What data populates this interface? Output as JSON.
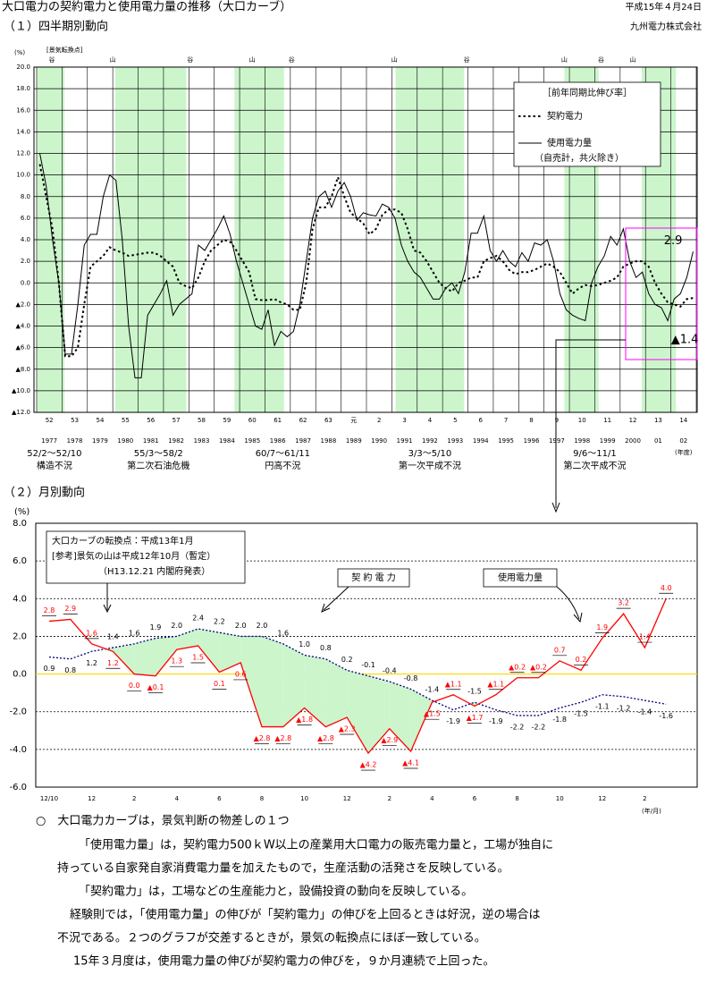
{
  "header": {
    "title": "大口電力の契約電力と使用電力量の推移（大口カーブ）",
    "date": "平成15年４月24日",
    "company": "九州電力株式会社"
  },
  "chart_data": [
    {
      "type": "line",
      "title": "（１）四半期別動向",
      "y_unit": "(%)",
      "turning_points_title": "[景気転換点]",
      "x_unit": "(年度)",
      "categories": [
        "52",
        "53",
        "54",
        "55",
        "56",
        "57",
        "58",
        "59",
        "60",
        "61",
        "62",
        "63",
        "元",
        "2",
        "3",
        "4",
        "5",
        "6",
        "7",
        "8",
        "9",
        "10",
        "11",
        "12",
        "13",
        "14"
      ],
      "years": [
        "1977",
        "1978",
        "1979",
        "1980",
        "1981",
        "1982",
        "1983",
        "1984",
        "1985",
        "1986",
        "1987",
        "1988",
        "1989",
        "1990",
        "1991",
        "1992",
        "1993",
        "1994",
        "1995",
        "1996",
        "1997",
        "1998",
        "1999",
        "2000",
        "01",
        "02"
      ],
      "xlim": [
        1977,
        2003
      ],
      "ylim": [
        -12,
        20
      ],
      "yticks": [
        {
          "value": -12,
          "label": "▲12.0"
        },
        {
          "value": -10,
          "label": "▲10.0"
        },
        {
          "value": -8,
          "label": "▲8.0"
        },
        {
          "value": -6,
          "label": "▲6.0"
        },
        {
          "value": -4,
          "label": "▲4.0"
        },
        {
          "value": -2,
          "label": "▲2.0"
        },
        {
          "value": 0,
          "label": "0.0"
        },
        {
          "value": 2,
          "label": "2.0"
        },
        {
          "value": 4,
          "label": "4.0"
        },
        {
          "value": 6,
          "label": "6.0"
        },
        {
          "value": 8,
          "label": "8.0"
        },
        {
          "value": 10,
          "label": "10.0"
        },
        {
          "value": 12,
          "label": "12.0"
        },
        {
          "value": 14,
          "label": "14.0"
        },
        {
          "value": 16,
          "label": "16.0"
        },
        {
          "value": 18,
          "label": "18.0"
        },
        {
          "value": 20,
          "label": "20.0"
        }
      ],
      "grid": true,
      "series": [
        {
          "name": "契約電力",
          "color": "#000000",
          "style": "dotted",
          "values": [
            [
              11,
              8,
              5,
              0
            ],
            [
              -6.8,
              -6.8,
              -6,
              -2
            ],
            [
              1.5,
              2,
              2.5,
              3.3
            ],
            [
              3,
              2.8,
              2.5,
              2.6
            ],
            [
              2.7,
              2.8,
              2.8,
              2.5
            ],
            [
              2,
              1.5,
              0,
              -0.3
            ],
            [
              -0.5,
              0.5,
              2,
              3
            ],
            [
              3.5,
              4,
              3.8,
              3
            ],
            [
              2,
              1,
              -1.5,
              -1.6
            ],
            [
              -1.6,
              -1.5,
              -1.8,
              -2
            ],
            [
              -2.5,
              -2.5,
              0,
              5
            ],
            [
              7,
              7,
              8,
              9.8
            ],
            [
              8,
              6.5,
              6,
              5.5
            ],
            [
              4.5,
              5,
              6.3,
              6.8
            ],
            [
              6.8,
              6.5,
              5,
              3
            ],
            [
              2.8,
              2,
              1,
              0
            ],
            [
              -0.5,
              -0.8,
              0,
              0.2
            ],
            [
              0.5,
              0.5,
              2,
              2.3
            ],
            [
              2.5,
              2,
              1.2,
              0.8
            ],
            [
              1,
              1,
              1.2,
              1.5
            ],
            [
              1.8,
              1.5,
              1,
              0
            ],
            [
              -1,
              -0.5,
              -0.2,
              -0.3
            ],
            [
              -0.2,
              0,
              0.2,
              0.5
            ],
            [
              1.5,
              1.8,
              2,
              2
            ],
            [
              1.5,
              0,
              -1,
              -1.8
            ],
            [
              -2,
              -2.2,
              -1.5,
              -1.4
            ]
          ]
        },
        {
          "name": "使用電力量",
          "color": "#000000",
          "style": "solid",
          "values": [
            [
              12,
              9,
              4,
              0
            ],
            [
              -6.6,
              -6.6,
              -2,
              3.5
            ],
            [
              4.5,
              4.5,
              8,
              10
            ],
            [
              9.5,
              4,
              -4,
              -8.8
            ],
            [
              -8.8,
              -3,
              -2,
              -1
            ],
            [
              0.2,
              -3,
              -2,
              -1.5
            ],
            [
              -1,
              3.5,
              3,
              4
            ],
            [
              5,
              6.2,
              4.5,
              2
            ],
            [
              0,
              -2,
              -4,
              -4.3
            ],
            [
              -2.5,
              -5.8,
              -4.5,
              -5
            ],
            [
              -4.5,
              -2,
              2,
              6
            ],
            [
              8,
              8.5,
              7,
              8.5
            ],
            [
              9.3,
              8,
              5.8,
              6.5
            ],
            [
              6.3,
              6.2,
              7.3,
              7
            ],
            [
              6,
              3.5,
              2,
              1
            ],
            [
              0.5,
              -0.5,
              -1.5,
              -1.5
            ],
            [
              -0.5,
              0,
              -1,
              1
            ],
            [
              4.6,
              4.6,
              6.2,
              3
            ],
            [
              2,
              3,
              2,
              1.5
            ],
            [
              2.8,
              2,
              3.7,
              3.5
            ],
            [
              4,
              2,
              -1,
              -2.5
            ],
            [
              -3,
              -3.3,
              -3.5,
              0
            ],
            [
              1.5,
              2.5,
              4.3,
              3.5
            ],
            [
              5,
              2,
              0.5,
              1
            ],
            [
              -1,
              -2,
              -2.3,
              -3.5
            ],
            [
              -1.5,
              -1,
              0.5,
              2.9
            ]
          ]
        }
      ],
      "legend_title": "［前年同期比伸び率］",
      "legend_note": "（自売計，共火除き）",
      "shade_color": "#ccf5cc",
      "shaded_periods": [
        [
          1977.0,
          1978.1
        ],
        [
          1980.1,
          1982.9
        ],
        [
          1984.8,
          1986.75
        ],
        [
          1991.15,
          1993.85
        ],
        [
          1997.8,
          1999.15
        ],
        [
          2000.85,
          2002.2
        ]
      ],
      "turning_points": [
        {
          "label": "谷",
          "x": 1977.6
        },
        {
          "label": "山",
          "x": 1980.0
        },
        {
          "label": "谷",
          "x": 1983.05
        },
        {
          "label": "山",
          "x": 1985.5
        },
        {
          "label": "谷",
          "x": 1987.05
        },
        {
          "label": "山",
          "x": 1991.1
        },
        {
          "label": "谷",
          "x": 1993.95
        },
        {
          "label": "山",
          "x": 1997.8
        },
        {
          "label": "谷",
          "x": 1999.25
        },
        {
          "label": "山",
          "x": 2000.5
        }
      ],
      "recessions": [
        {
          "period": "52/2～52/10",
          "name": "構造不況",
          "x": 1977.7
        },
        {
          "period": "55/3～58/2",
          "name": "第二次石油危機",
          "x": 1981.8
        },
        {
          "period": "60/7～61/11",
          "name": "円高不況",
          "x": 1986.7
        },
        {
          "period": "3/3～5/10",
          "name": "第一次平成不況",
          "x": 1992.5
        },
        {
          "period": "9/6～11/1",
          "name": "第二次平成不況",
          "x": 1999.0
        }
      ],
      "annotations": [
        "2.9",
        "▲1.4"
      ]
    },
    {
      "type": "line",
      "title": "（２）月別動向",
      "y_unit": "(%)",
      "x_unit": "(年/月)",
      "categories": [
        "12/10",
        null,
        "12",
        null,
        "2",
        null,
        "4",
        null,
        "6",
        null,
        "8",
        null,
        "10",
        null,
        "12",
        null,
        "2",
        null,
        "4",
        null,
        "6",
        null,
        "8",
        null,
        "10",
        null,
        "12",
        null,
        "2",
        null
      ],
      "ylim": [
        -6,
        8
      ],
      "yticks": [
        {
          "value": -6,
          "label": "-6.0"
        },
        {
          "value": -4,
          "label": "-4.0"
        },
        {
          "value": -2,
          "label": "-2.0"
        },
        {
          "value": 0,
          "label": "0.0"
        },
        {
          "value": 2,
          "label": "2.0"
        },
        {
          "value": 4,
          "label": "4.0"
        },
        {
          "value": 6,
          "label": "6.0"
        },
        {
          "value": 8,
          "label": "8.0"
        }
      ],
      "grid": true,
      "zero_line_color": "#ffd700",
      "fill_color": "#ccf5cc",
      "series": [
        {
          "name": "契 約 電 力",
          "color": "#000080",
          "style": "dotted",
          "values": [
            0.9,
            0.8,
            1.2,
            1.4,
            1.6,
            1.9,
            2.0,
            2.4,
            2.2,
            2.0,
            2.0,
            1.6,
            1.0,
            0.8,
            0.2,
            -0.1,
            -0.4,
            -0.8,
            -1.4,
            -1.9,
            -1.5,
            -1.9,
            -2.2,
            -2.2,
            -1.8,
            -1.5,
            -1.1,
            -1.2,
            -1.4,
            -1.6
          ],
          "value_labels": [
            "0.9",
            "0.8",
            "1.2",
            "1.4",
            "1.6",
            "1.9",
            "2.0",
            "2.4",
            "2.2",
            "2.0",
            "2.0",
            "1.6",
            "1.0",
            "0.8",
            "0.2",
            "-0.1",
            "-0.4",
            "-0.8",
            "-1.4",
            "-1.9",
            "-1.5",
            "-1.9",
            "-2.2",
            "-2.2",
            "-1.8",
            "-1.5",
            "-1.1",
            "-1.2",
            "-1.4",
            "-1.6"
          ]
        },
        {
          "name": "使用電力量",
          "color": "#ff0000",
          "style": "solid",
          "values": [
            2.8,
            2.9,
            1.6,
            1.2,
            0.0,
            -0.1,
            1.3,
            1.5,
            0.1,
            0.6,
            -2.8,
            -2.8,
            -1.8,
            -2.8,
            -2.3,
            -4.2,
            -2.9,
            -4.1,
            -1.5,
            -1.1,
            -1.7,
            -1.1,
            -0.2,
            -0.2,
            0.7,
            0.2,
            1.9,
            3.2,
            1.4,
            4.0
          ],
          "value_labels": [
            "2.8",
            "2.9",
            "1.6",
            "1.2",
            "0.0",
            "▲0.1",
            "1.3",
            "1.5",
            "0.1",
            "0.6",
            "▲2.8",
            "▲2.8",
            "▲1.8",
            "▲2.8",
            "▲2.3",
            "▲4.2",
            "▲2.9",
            "▲4.1",
            "▲1.5",
            "▲1.1",
            "▲1.7",
            "▲1.1",
            "▲0.2",
            "▲0.2",
            "0.7",
            "0.2",
            "1.9",
            "3.2",
            "1.4",
            "4.0"
          ]
        }
      ],
      "notes": [
        "大口カーブの転換点：平成13年1月",
        "[参考]景気の山は平成12年10月（暫定）",
        "（H13.12.21 内閣府発表）"
      ]
    }
  ],
  "text": {
    "heading": "○　大口電力カーブは，景気判断の物差しの１つ",
    "lines": [
      "「使用電力量」は，契約電力500ｋW以上の産業用大口電力の販売電力量と，工場が独自に",
      "持っている自家発自家消費電力量を加えたもので，生産活動の活発さを反映している。",
      "「契約電力」は，工場などの生産能力と，設備投資の動向を反映している。",
      "経験則では，「使用電力量」の伸びが「契約電力」の伸びを上回るときは好況，逆の場合は",
      "不況である。２つのグラフが交差するときが，景気の転換点にほぼ一致している。",
      "15年３月度は，使用電力量の伸びが契約電力の伸びを，９か月連続で上回った。"
    ]
  }
}
